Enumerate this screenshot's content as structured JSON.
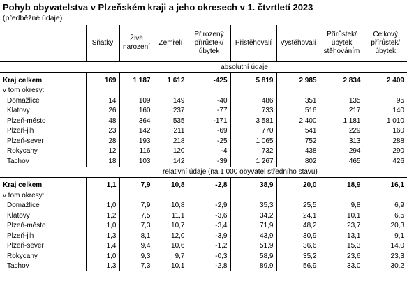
{
  "title": "Pohyb obyvatelstva v Plzeňském kraji a jeho okresech v 1. čtvrtletí 2023",
  "subtitle": "(předběžné údaje)",
  "columns": [
    "Sňatky",
    "Živě narození",
    "Zemřelí",
    "Přirozený přírůstek/ úbytek",
    "Přistěhovalí",
    "Vystěhovalí",
    "Přírůstek/ úbytek stěhováním",
    "Celkový přírůstek/ úbytek"
  ],
  "sections": [
    {
      "heading": "absolutní údaje",
      "total": {
        "label": "Kraj celkem",
        "values": [
          "169",
          "1 187",
          "1 612",
          "-425",
          "5 819",
          "2 985",
          "2 834",
          "2 409"
        ]
      },
      "subheading": "v tom okresy:",
      "rows": [
        {
          "label": "Domažlice",
          "values": [
            "14",
            "109",
            "149",
            "-40",
            "486",
            "351",
            "135",
            "95"
          ]
        },
        {
          "label": "Klatovy",
          "values": [
            "26",
            "160",
            "237",
            "-77",
            "733",
            "516",
            "217",
            "140"
          ]
        },
        {
          "label": "Plzeň-město",
          "values": [
            "48",
            "364",
            "535",
            "-171",
            "3 581",
            "2 400",
            "1 181",
            "1 010"
          ]
        },
        {
          "label": "Plzeň-jih",
          "values": [
            "23",
            "142",
            "211",
            "-69",
            "770",
            "541",
            "229",
            "160"
          ]
        },
        {
          "label": "Plzeň-sever",
          "values": [
            "28",
            "193",
            "218",
            "-25",
            "1 065",
            "752",
            "313",
            "288"
          ]
        },
        {
          "label": "Rokycany",
          "values": [
            "12",
            "116",
            "120",
            "-4",
            "732",
            "438",
            "294",
            "290"
          ]
        },
        {
          "label": "Tachov",
          "values": [
            "18",
            "103",
            "142",
            "-39",
            "1 267",
            "802",
            "465",
            "426"
          ]
        }
      ]
    },
    {
      "heading": "relativní údaje (na 1 000 obyvatel středního stavu)",
      "total": {
        "label": "Kraj celkem",
        "values": [
          "1,1",
          "7,9",
          "10,8",
          "-2,8",
          "38,9",
          "20,0",
          "18,9",
          "16,1"
        ]
      },
      "subheading": "v tom okresy:",
      "rows": [
        {
          "label": "Domažlice",
          "values": [
            "1,0",
            "7,9",
            "10,8",
            "-2,9",
            "35,3",
            "25,5",
            "9,8",
            "6,9"
          ]
        },
        {
          "label": "Klatovy",
          "values": [
            "1,2",
            "7,5",
            "11,1",
            "-3,6",
            "34,2",
            "24,1",
            "10,1",
            "6,5"
          ]
        },
        {
          "label": "Plzeň-město",
          "values": [
            "1,0",
            "7,3",
            "10,7",
            "-3,4",
            "71,9",
            "48,2",
            "23,7",
            "20,3"
          ]
        },
        {
          "label": "Plzeň-jih",
          "values": [
            "1,3",
            "8,1",
            "12,0",
            "-3,9",
            "43,9",
            "30,9",
            "13,1",
            "9,1"
          ]
        },
        {
          "label": "Plzeň-sever",
          "values": [
            "1,4",
            "9,4",
            "10,6",
            "-1,2",
            "51,9",
            "36,6",
            "15,3",
            "14,0"
          ]
        },
        {
          "label": "Rokycany",
          "values": [
            "1,0",
            "9,3",
            "9,7",
            "-0,3",
            "58,9",
            "35,2",
            "23,6",
            "23,3"
          ]
        },
        {
          "label": "Tachov",
          "values": [
            "1,3",
            "7,3",
            "10,1",
            "-2,8",
            "89,9",
            "56,9",
            "33,0",
            "30,2"
          ]
        }
      ]
    }
  ]
}
